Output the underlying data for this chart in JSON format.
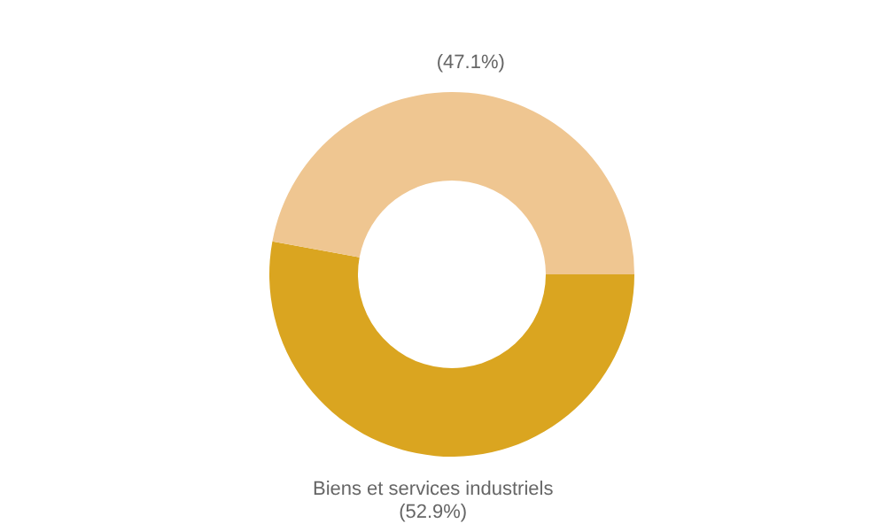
{
  "chart_data": {
    "type": "donut",
    "categories": [
      "Biens et services industriels",
      null
    ],
    "values": [
      52.9,
      47.1
    ],
    "colors": [
      "#daa520",
      "#efc691"
    ],
    "value_labels": [
      "(52.9%)",
      "(47.1%)"
    ]
  }
}
